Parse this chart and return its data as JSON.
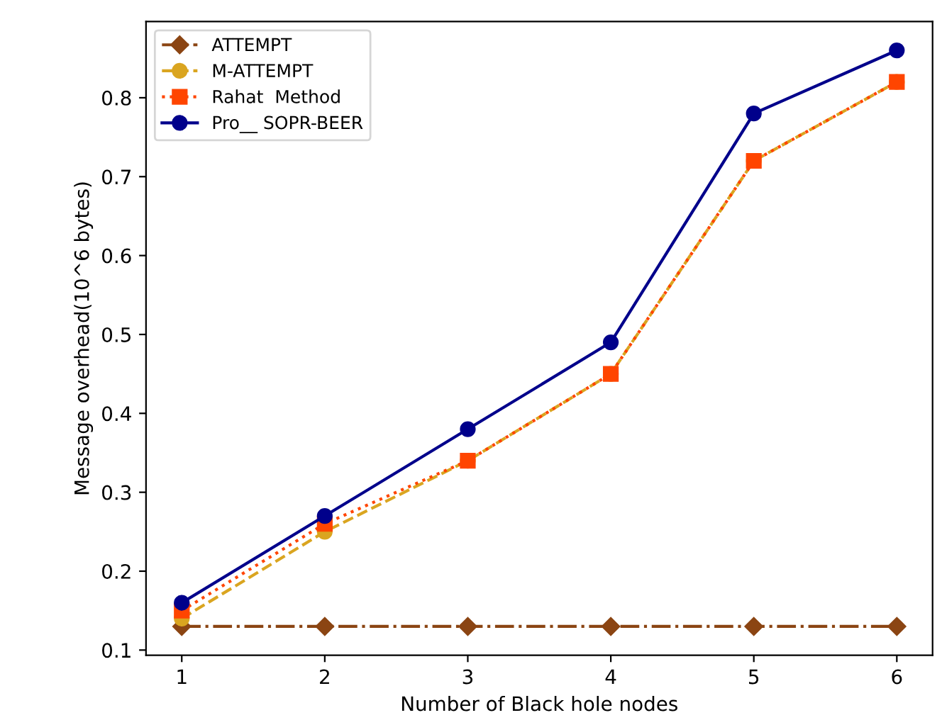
{
  "chart_data": {
    "type": "line",
    "xlabel": "Number of Black hole nodes",
    "ylabel": "Message overhead(10^6 bytes)",
    "x": [
      1,
      2,
      3,
      4,
      5,
      6
    ],
    "xlim": [
      0.75,
      6.25
    ],
    "xticks": [
      1,
      2,
      3,
      4,
      5,
      6
    ],
    "ylim": [
      0.0935,
      0.8965
    ],
    "yticks": [
      0.1,
      0.2,
      0.3,
      0.4,
      0.5,
      0.6,
      0.7,
      0.8
    ],
    "grid": false,
    "legend": "top left",
    "series": [
      {
        "name": "ATTEMPT",
        "color": "#8b4513",
        "marker": "diamond",
        "line_style": "dashdot",
        "values": [
          0.13,
          0.13,
          0.13,
          0.13,
          0.13,
          0.13
        ]
      },
      {
        "name": "M-ATTEMPT",
        "color": "#daa520",
        "marker": "circle",
        "line_style": "dashed",
        "values": [
          0.14,
          0.25,
          0.34,
          0.45,
          0.72,
          0.82
        ]
      },
      {
        "name": "Rahat  Method",
        "color": "#ff4500",
        "marker": "square",
        "line_style": "dotted",
        "values": [
          0.15,
          0.26,
          0.34,
          0.45,
          0.72,
          0.82
        ]
      },
      {
        "name": "Pro__ SOPR-BEER",
        "color": "#00008b",
        "marker": "circle",
        "line_style": "solid",
        "values": [
          0.16,
          0.27,
          0.38,
          0.49,
          0.78,
          0.86
        ]
      }
    ]
  }
}
